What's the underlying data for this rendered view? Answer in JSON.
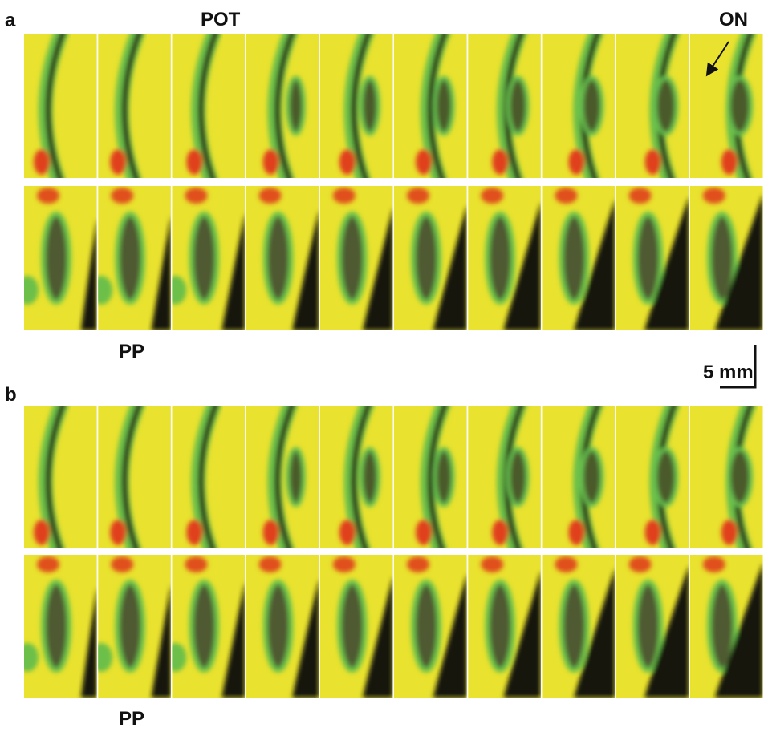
{
  "panel_a": {
    "label": "a",
    "top_label": "POT",
    "arrow_label": "ON",
    "bottom_label": "PP"
  },
  "scale_bar": "5 mm",
  "panel_b": {
    "label": "b",
    "bottom_label": "PP"
  }
}
